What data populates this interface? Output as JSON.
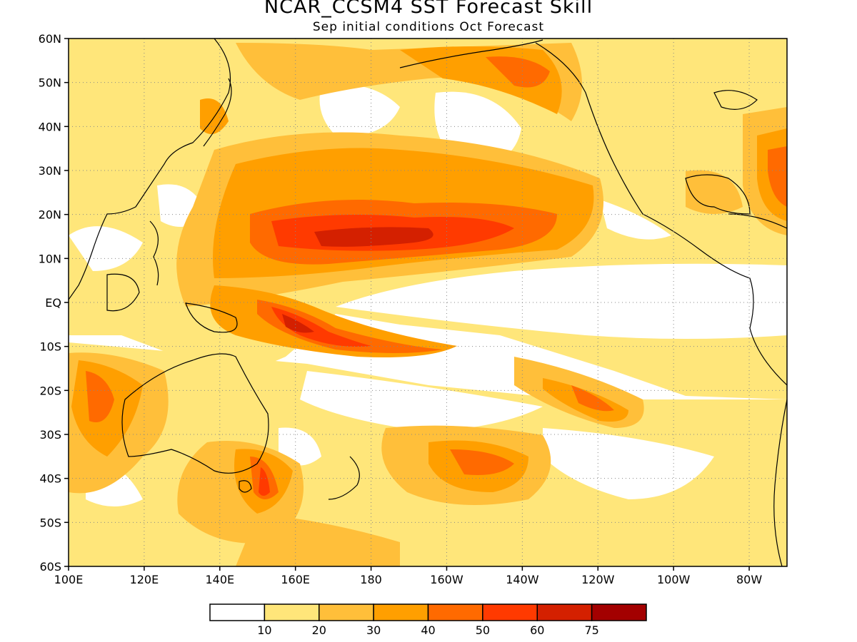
{
  "title": "NCAR_CCSM4 SST Forecast Skill",
  "subtitle": "Sep initial conditions  Oct Forecast",
  "map": {
    "lat_ticks": [
      "60N",
      "50N",
      "40N",
      "30N",
      "20N",
      "10N",
      "EQ",
      "10S",
      "20S",
      "30S",
      "40S",
      "50S",
      "60S"
    ],
    "lon_ticks": [
      "100E",
      "120E",
      "140E",
      "160E",
      "180",
      "160W",
      "140W",
      "120W",
      "100W",
      "80W"
    ],
    "lat_range": [
      -60,
      60
    ],
    "lon_range": [
      100,
      290
    ],
    "grid": "dotted"
  },
  "legend": {
    "labels": [
      "10",
      "20",
      "30",
      "40",
      "50",
      "60",
      "75"
    ],
    "colors": [
      "#ffffff",
      "#ffe67a",
      "#ffbf3a",
      "#ff9f00",
      "#ff6a00",
      "#ff3a00",
      "#d42000",
      "#a30000"
    ]
  }
}
